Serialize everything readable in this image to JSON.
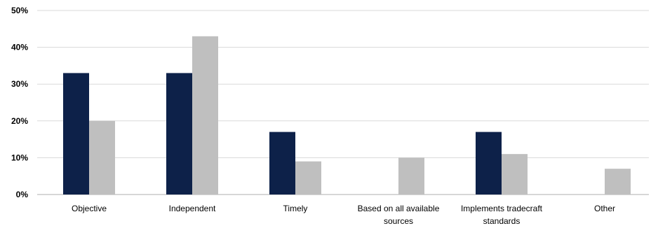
{
  "chart_data": {
    "type": "bar",
    "title": "",
    "xlabel": "",
    "ylabel": "",
    "ylim": [
      0,
      50
    ],
    "y_ticks": [
      "0%",
      "10%",
      "20%",
      "30%",
      "40%",
      "50%"
    ],
    "y_tick_values": [
      0,
      10,
      20,
      30,
      40,
      50
    ],
    "grid": true,
    "legend": "none",
    "categories": [
      [
        "Objective"
      ],
      [
        "Independent"
      ],
      [
        "Timely"
      ],
      [
        "Based on all available",
        "sources"
      ],
      [
        "Implements tradecraft",
        "standards"
      ],
      [
        "Other"
      ]
    ],
    "series": [
      {
        "color": "#0d2149",
        "values": [
          33,
          33,
          17,
          0,
          17,
          0
        ]
      },
      {
        "color": "#bfbfbf",
        "values": [
          20,
          43,
          9,
          10,
          11,
          7
        ]
      }
    ]
  }
}
